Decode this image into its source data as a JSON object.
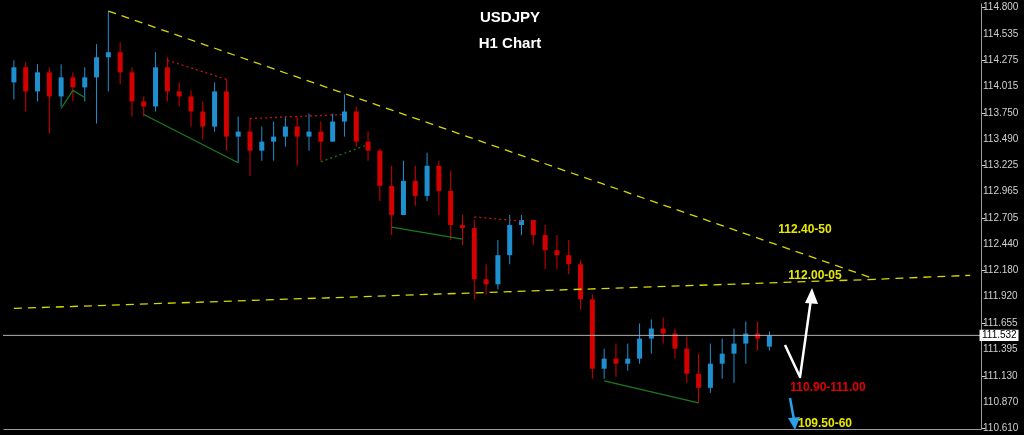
{
  "chart_data": {
    "type": "candlestick",
    "title": "USDJPY",
    "subtitle": "H1 Chart",
    "tick_labels": "y",
    "ylim": [
      110.6,
      114.84
    ],
    "yticks": [
      {
        "value": 114.8,
        "label": "114.800"
      },
      {
        "value": 114.535,
        "label": "114.535"
      },
      {
        "value": 114.275,
        "label": "114.275"
      },
      {
        "value": 114.015,
        "label": "114.015"
      },
      {
        "value": 113.75,
        "label": "113.750"
      },
      {
        "value": 113.49,
        "label": "113.490"
      },
      {
        "value": 113.225,
        "label": "113.225"
      },
      {
        "value": 112.965,
        "label": "112.965"
      },
      {
        "value": 112.705,
        "label": "112.705"
      },
      {
        "value": 112.44,
        "label": "112.440"
      },
      {
        "value": 112.18,
        "label": "112.180"
      },
      {
        "value": 111.92,
        "label": "111.920"
      },
      {
        "value": 111.655,
        "label": "111.655"
      },
      {
        "value": 111.395,
        "label": "111.395"
      },
      {
        "value": 111.13,
        "label": "111.130"
      },
      {
        "value": 110.87,
        "label": "110.870"
      },
      {
        "value": 110.61,
        "label": "110.610"
      }
    ],
    "categories": [
      null,
      null,
      null,
      null,
      null,
      null,
      null,
      null,
      null,
      null,
      null,
      null,
      null,
      null,
      null,
      null,
      null,
      null,
      null,
      null,
      null,
      null,
      null,
      null,
      null,
      null,
      null,
      null,
      null,
      null,
      null,
      null,
      null,
      null,
      null,
      null,
      null,
      null,
      null,
      null,
      null,
      null,
      null,
      null,
      null,
      null,
      null,
      null,
      null,
      null,
      null,
      null,
      null,
      null,
      null,
      null,
      null,
      null,
      null,
      null,
      null,
      null,
      null,
      null,
      null,
      null,
      null,
      null,
      null,
      null,
      null,
      null,
      null,
      null,
      null,
      null,
      null,
      null,
      null,
      null,
      null,
      null
    ],
    "ohlc": [
      [
        114.05,
        114.27,
        113.88,
        114.2
      ],
      [
        114.2,
        114.25,
        113.76,
        113.96
      ],
      [
        113.96,
        114.23,
        113.86,
        114.15
      ],
      [
        114.15,
        114.2,
        113.54,
        113.91
      ],
      [
        113.91,
        114.23,
        113.81,
        114.1
      ],
      [
        114.1,
        114.15,
        113.86,
        114.0
      ],
      [
        114.0,
        114.2,
        113.86,
        114.1
      ],
      [
        114.1,
        114.43,
        113.64,
        114.3
      ],
      [
        114.3,
        114.76,
        113.96,
        114.35
      ],
      [
        114.35,
        114.45,
        114.03,
        114.15
      ],
      [
        114.15,
        114.2,
        113.71,
        113.86
      ],
      [
        113.86,
        113.91,
        113.71,
        113.81
      ],
      [
        113.81,
        114.35,
        113.76,
        114.2
      ],
      [
        114.2,
        114.3,
        113.86,
        113.96
      ],
      [
        113.96,
        114.05,
        113.81,
        113.91
      ],
      [
        113.91,
        113.97,
        113.61,
        113.76
      ],
      [
        113.76,
        113.86,
        113.48,
        113.61
      ],
      [
        113.61,
        114.05,
        113.56,
        113.96
      ],
      [
        113.96,
        114.08,
        113.37,
        113.51
      ],
      [
        113.51,
        113.71,
        113.25,
        113.56
      ],
      [
        113.56,
        113.69,
        113.12,
        113.37
      ],
      [
        113.37,
        113.61,
        113.27,
        113.46
      ],
      [
        113.46,
        113.66,
        113.27,
        113.51
      ],
      [
        113.51,
        113.71,
        113.41,
        113.61
      ],
      [
        113.61,
        113.71,
        113.22,
        113.51
      ],
      [
        113.51,
        113.74,
        113.37,
        113.56
      ],
      [
        113.56,
        113.66,
        113.27,
        113.46
      ],
      [
        113.46,
        113.74,
        113.46,
        113.66
      ],
      [
        113.66,
        113.93,
        113.51,
        113.76
      ],
      [
        113.76,
        113.81,
        113.41,
        113.46
      ],
      [
        113.46,
        113.56,
        113.27,
        113.37
      ],
      [
        113.37,
        113.39,
        112.87,
        113.02
      ],
      [
        113.02,
        113.22,
        112.53,
        112.73
      ],
      [
        112.73,
        113.27,
        112.73,
        113.07
      ],
      [
        113.07,
        113.22,
        112.82,
        112.92
      ],
      [
        112.92,
        113.35,
        112.87,
        113.22
      ],
      [
        113.22,
        113.27,
        112.73,
        112.97
      ],
      [
        112.97,
        113.17,
        112.48,
        112.63
      ],
      [
        112.63,
        112.73,
        112.43,
        112.6
      ],
      [
        112.6,
        112.68,
        111.89,
        112.09
      ],
      [
        112.09,
        112.24,
        111.94,
        112.04
      ],
      [
        112.04,
        112.48,
        111.99,
        112.33
      ],
      [
        112.33,
        112.73,
        112.24,
        112.63
      ],
      [
        112.63,
        112.73,
        112.53,
        112.68
      ],
      [
        112.68,
        112.68,
        112.43,
        112.53
      ],
      [
        112.53,
        112.63,
        112.19,
        112.38
      ],
      [
        112.38,
        112.53,
        112.19,
        112.33
      ],
      [
        112.33,
        112.48,
        112.14,
        112.24
      ],
      [
        112.24,
        112.28,
        111.79,
        111.89
      ],
      [
        111.89,
        111.94,
        111.1,
        111.2
      ],
      [
        111.2,
        111.4,
        111.1,
        111.3
      ],
      [
        111.3,
        111.45,
        111.12,
        111.25
      ],
      [
        111.25,
        111.45,
        111.18,
        111.3
      ],
      [
        111.3,
        111.65,
        111.25,
        111.5
      ],
      [
        111.5,
        111.69,
        111.35,
        111.6
      ],
      [
        111.6,
        111.71,
        111.45,
        111.55
      ],
      [
        111.55,
        111.6,
        111.3,
        111.4
      ],
      [
        111.4,
        111.52,
        111.06,
        111.15
      ],
      [
        111.15,
        111.35,
        110.86,
        111.01
      ],
      [
        111.01,
        111.45,
        110.96,
        111.25
      ],
      [
        111.25,
        111.5,
        111.1,
        111.35
      ],
      [
        111.35,
        111.6,
        111.06,
        111.45
      ],
      [
        111.45,
        111.67,
        111.25,
        111.55
      ],
      [
        111.55,
        111.67,
        111.38,
        111.5
      ],
      [
        111.42,
        111.57,
        111.38,
        111.53
      ],
      null,
      null,
      null,
      null,
      null,
      null,
      null,
      null,
      null,
      null,
      null,
      null,
      null,
      null,
      null,
      null,
      null
    ],
    "colors": [
      "#1e90d0",
      "#d40000",
      "#1e90d0",
      "#d40000",
      "#1e90d0",
      "#d40000",
      "#1e90d0",
      "#1e90d0",
      "#1e90d0",
      "#d40000",
      "#d40000",
      "#d40000",
      "#1e90d0",
      "#d40000",
      "#d40000",
      "#d40000",
      "#d40000",
      "#1e90d0",
      "#d40000",
      "#1e90d0",
      "#d40000",
      "#1e90d0",
      "#1e90d0",
      "#1e90d0",
      "#d40000",
      "#1e90d0",
      "#d40000",
      "#1e90d0",
      "#1e90d0",
      "#d40000",
      "#d40000",
      "#d40000",
      "#d40000",
      "#1e90d0",
      "#d40000",
      "#1e90d0",
      "#d40000",
      "#d40000",
      "#d40000",
      "#d40000",
      "#d40000",
      "#1e90d0",
      "#1e90d0",
      "#1e90d0",
      "#d40000",
      "#d40000",
      "#d40000",
      "#d40000",
      "#d40000",
      "#d40000",
      "#1e90d0",
      "#d40000",
      "#1e90d0",
      "#1e90d0",
      "#1e90d0",
      "#d40000",
      "#d40000",
      "#d40000",
      "#d40000",
      "#1e90d0",
      "#1e90d0",
      "#1e90d0",
      "#1e90d0",
      "#d40000",
      "#1e90d0",
      null,
      null,
      null,
      null,
      null,
      null,
      null,
      null,
      null,
      null,
      null,
      null,
      null,
      null,
      null,
      null,
      null
    ],
    "series": [
      {
        "type": "line",
        "color": "#d8d800",
        "line_style": "dashed",
        "values": [
          null,
          null,
          null,
          null,
          null,
          null,
          null,
          null,
          114.76,
          null,
          null,
          null,
          null,
          null,
          null,
          null,
          null,
          null,
          null,
          null,
          null,
          null,
          null,
          null,
          null,
          null,
          null,
          null,
          null,
          null,
          null,
          null,
          null,
          null,
          null,
          null,
          null,
          null,
          null,
          null,
          null,
          null,
          null,
          null,
          null,
          null,
          null,
          null,
          null,
          null,
          null,
          null,
          null,
          null,
          null,
          null,
          null,
          null,
          null,
          null,
          null,
          null,
          null,
          null,
          null,
          null,
          null,
          null,
          null,
          null,
          null,
          null,
          null,
          112.09,
          null,
          null,
          null,
          null,
          null,
          null,
          null,
          null
        ]
      },
      {
        "type": "line",
        "color": "#d8d800",
        "line_style": "dashed",
        "values": [
          111.8,
          null,
          null,
          null,
          null,
          null,
          null,
          null,
          null,
          null,
          null,
          null,
          null,
          null,
          null,
          null,
          null,
          null,
          null,
          null,
          null,
          null,
          null,
          null,
          null,
          null,
          null,
          null,
          null,
          null,
          null,
          null,
          null,
          null,
          null,
          null,
          null,
          null,
          null,
          null,
          null,
          null,
          null,
          null,
          null,
          null,
          null,
          null,
          null,
          null,
          null,
          null,
          null,
          null,
          null,
          null,
          null,
          null,
          null,
          null,
          null,
          null,
          null,
          null,
          null,
          null,
          null,
          null,
          null,
          null,
          null,
          null,
          null,
          112.09,
          null,
          null,
          null,
          null,
          null,
          null,
          null,
          112.13
        ]
      },
      {
        "type": "line",
        "color": "#1c7a1c",
        "line_style": "solid",
        "values": [
          null,
          null,
          null,
          null,
          113.79,
          113.97,
          113.9,
          null,
          null,
          null,
          null,
          null,
          null,
          null,
          null,
          null,
          null,
          null,
          null,
          null,
          null,
          null,
          null,
          null,
          null,
          null,
          null,
          null,
          null,
          null,
          null,
          null,
          null,
          null,
          null,
          null,
          null,
          null,
          null,
          null,
          null,
          null,
          null,
          null,
          null,
          null,
          null,
          null,
          null,
          null,
          null,
          null,
          null,
          null,
          null,
          null,
          null,
          null,
          null,
          null,
          null,
          null,
          null,
          null,
          null,
          null,
          null,
          null,
          null,
          null,
          null,
          null,
          null,
          null,
          null,
          null,
          null,
          null,
          null,
          null,
          null,
          null
        ]
      },
      {
        "type": "line",
        "color": "#1c7a1c",
        "line_style": "solid",
        "values": [
          null,
          null,
          null,
          null,
          null,
          null,
          null,
          null,
          null,
          null,
          null,
          113.73,
          null,
          null,
          null,
          null,
          null,
          null,
          null,
          113.25,
          null,
          null,
          null,
          null,
          null,
          null,
          null,
          null,
          null,
          null,
          null,
          null,
          null,
          null,
          null,
          null,
          null,
          null,
          null,
          null,
          null,
          null,
          null,
          null,
          null,
          null,
          null,
          null,
          null,
          null,
          null,
          null,
          null,
          null,
          null,
          null,
          null,
          null,
          null,
          null,
          null,
          null,
          null,
          null,
          null,
          null,
          null,
          null,
          null,
          null,
          null,
          null,
          null,
          null,
          null,
          null,
          null,
          null,
          null,
          null,
          null,
          null
        ]
      },
      {
        "type": "line",
        "color": "#cc1111",
        "line_style": "dotted",
        "values": [
          null,
          null,
          null,
          null,
          null,
          null,
          null,
          null,
          null,
          null,
          null,
          null,
          null,
          114.27,
          null,
          null,
          null,
          null,
          114.08,
          null,
          null,
          null,
          null,
          null,
          null,
          null,
          null,
          null,
          null,
          null,
          null,
          null,
          null,
          null,
          null,
          null,
          null,
          null,
          null,
          null,
          null,
          null,
          null,
          null,
          null,
          null,
          null,
          null,
          null,
          null,
          null,
          null,
          null,
          null,
          null,
          null,
          null,
          null,
          null,
          null,
          null,
          null,
          null,
          null,
          null,
          null,
          null,
          null,
          null,
          null,
          null,
          null,
          null,
          null,
          null,
          null,
          null,
          null,
          null,
          null,
          null,
          null
        ]
      },
      {
        "type": "line",
        "color": "#cc1111",
        "line_style": "dotted",
        "values": [
          null,
          null,
          null,
          null,
          null,
          null,
          null,
          null,
          null,
          null,
          null,
          null,
          null,
          null,
          null,
          null,
          null,
          null,
          null,
          null,
          113.69,
          null,
          null,
          null,
          null,
          null,
          null,
          null,
          113.73,
          null,
          null,
          null,
          null,
          null,
          null,
          null,
          null,
          null,
          null,
          null,
          null,
          null,
          null,
          null,
          null,
          null,
          null,
          null,
          null,
          null,
          null,
          null,
          null,
          null,
          null,
          null,
          null,
          null,
          null,
          null,
          null,
          null,
          null,
          null,
          null,
          null,
          null,
          null,
          null,
          null,
          null,
          null,
          null,
          null,
          null,
          null,
          null,
          null,
          null,
          null,
          null,
          null
        ]
      },
      {
        "type": "line",
        "color": "#1c7a1c",
        "line_style": "dotted",
        "values": [
          null,
          null,
          null,
          null,
          null,
          null,
          null,
          null,
          null,
          null,
          null,
          null,
          null,
          null,
          null,
          null,
          null,
          null,
          null,
          null,
          null,
          null,
          null,
          null,
          null,
          null,
          113.26,
          null,
          null,
          null,
          113.43,
          null,
          null,
          null,
          null,
          null,
          null,
          null,
          null,
          null,
          null,
          null,
          null,
          null,
          null,
          null,
          null,
          null,
          null,
          null,
          null,
          null,
          null,
          null,
          null,
          null,
          null,
          null,
          null,
          null,
          null,
          null,
          null,
          null,
          null,
          null,
          null,
          null,
          null,
          null,
          null,
          null,
          null,
          null,
          null,
          null,
          null,
          null,
          null,
          null,
          null,
          null
        ]
      },
      {
        "type": "line",
        "color": "#1c7a1c",
        "line_style": "solid",
        "values": [
          null,
          null,
          null,
          null,
          null,
          null,
          null,
          null,
          null,
          null,
          null,
          null,
          null,
          null,
          null,
          null,
          null,
          null,
          null,
          null,
          null,
          null,
          null,
          null,
          null,
          null,
          null,
          null,
          null,
          null,
          null,
          null,
          112.61,
          null,
          null,
          null,
          null,
          null,
          112.49,
          null,
          null,
          null,
          null,
          null,
          null,
          null,
          null,
          null,
          null,
          null,
          null,
          null,
          null,
          null,
          null,
          null,
          null,
          null,
          null,
          null,
          null,
          null,
          null,
          null,
          null,
          null,
          null,
          null,
          null,
          null,
          null,
          null,
          null,
          null,
          null,
          null,
          null,
          null,
          null,
          null,
          null,
          null
        ]
      },
      {
        "type": "line",
        "color": "#cc1111",
        "line_style": "dotted",
        "values": [
          null,
          null,
          null,
          null,
          null,
          null,
          null,
          null,
          null,
          null,
          null,
          null,
          null,
          null,
          null,
          null,
          null,
          null,
          null,
          null,
          null,
          null,
          null,
          null,
          null,
          null,
          null,
          null,
          null,
          null,
          null,
          null,
          null,
          null,
          null,
          null,
          null,
          null,
          null,
          112.71,
          null,
          null,
          null,
          112.67,
          null,
          null,
          null,
          null,
          null,
          null,
          null,
          null,
          null,
          null,
          null,
          null,
          null,
          null,
          null,
          null,
          null,
          null,
          null,
          null,
          null,
          null,
          null,
          null,
          null,
          null,
          null,
          null,
          null,
          null,
          null,
          null,
          null,
          null,
          null,
          null,
          null,
          null
        ]
      },
      {
        "type": "line",
        "color": "#1c7a1c",
        "line_style": "solid",
        "values": [
          null,
          null,
          null,
          null,
          null,
          null,
          null,
          null,
          null,
          null,
          null,
          null,
          null,
          null,
          null,
          null,
          null,
          null,
          null,
          null,
          null,
          null,
          null,
          null,
          null,
          null,
          null,
          null,
          null,
          null,
          null,
          null,
          null,
          null,
          null,
          null,
          null,
          null,
          null,
          null,
          null,
          null,
          null,
          null,
          null,
          null,
          null,
          null,
          null,
          null,
          111.08,
          null,
          null,
          null,
          null,
          null,
          null,
          null,
          110.86,
          null,
          null,
          null,
          null,
          null,
          null,
          null,
          null,
          null,
          null,
          null,
          null,
          null,
          null,
          null,
          null,
          null,
          null,
          null,
          null,
          null,
          null,
          null
        ]
      }
    ],
    "ref_lines": [
      {
        "axis": "y",
        "value": 111.532,
        "label": "111.532",
        "color": "#b0b0b0"
      }
    ],
    "annotations": [
      "112.40-50",
      "112.00-05",
      "110.90-111.00",
      "109.50-60"
    ]
  }
}
